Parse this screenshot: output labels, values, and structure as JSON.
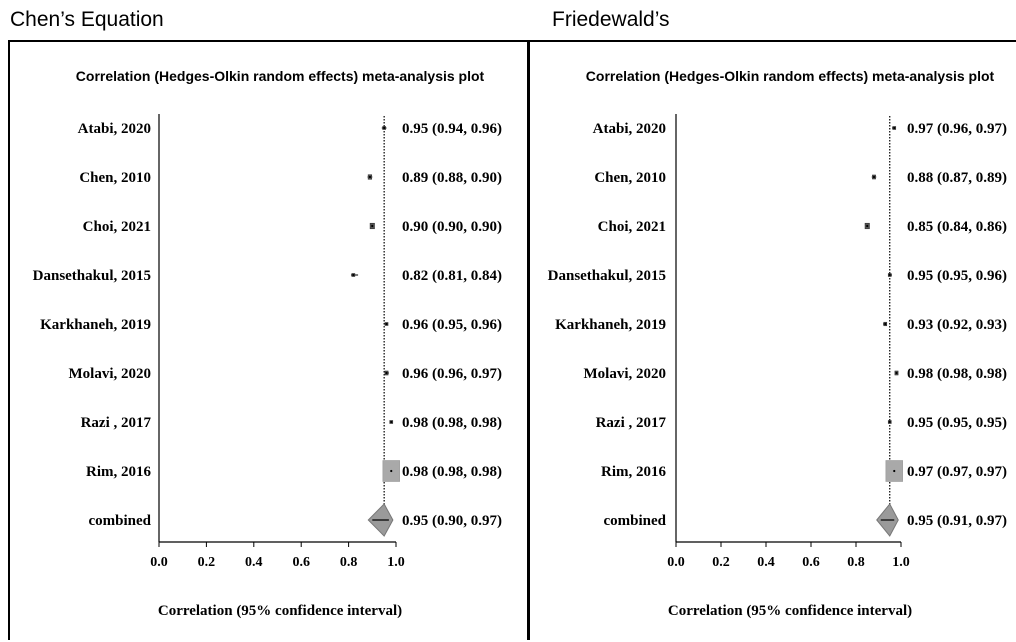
{
  "headings": {
    "left": "Chen’s Equation",
    "right": "Friedewald’s"
  },
  "chart_data": [
    {
      "type": "forest",
      "title": "Correlation (Hedges-Olkin random effects) meta-analysis plot",
      "xlabel": "Correlation (95% confidence interval)",
      "xlim": [
        0.0,
        1.0
      ],
      "xticks": [
        "0.0",
        "0.2",
        "0.4",
        "0.6",
        "0.8",
        "1.0"
      ],
      "reference_line": 0.95,
      "studies": [
        {
          "name": "Atabi, 2020",
          "r": 0.95,
          "lo": 0.94,
          "hi": 0.96,
          "label": "0.95 (0.94, 0.96)",
          "weight": 0.6
        },
        {
          "name": "Chen, 2010",
          "r": 0.89,
          "lo": 0.88,
          "hi": 0.9,
          "label": "0.89 (0.88, 0.90)",
          "weight": 0.9
        },
        {
          "name": "Choi, 2021",
          "r": 0.9,
          "lo": 0.9,
          "hi": 0.9,
          "label": "0.90 (0.90, 0.90)",
          "weight": 1.1
        },
        {
          "name": "Dansethakul, 2015",
          "r": 0.82,
          "lo": 0.81,
          "hi": 0.84,
          "label": "0.82 (0.81, 0.84)",
          "weight": 0.5
        },
        {
          "name": "Karkhaneh, 2019",
          "r": 0.96,
          "lo": 0.95,
          "hi": 0.96,
          "label": "0.96 (0.95, 0.96)",
          "weight": 0.6
        },
        {
          "name": "Molavi, 2020",
          "r": 0.96,
          "lo": 0.96,
          "hi": 0.97,
          "label": "0.96 (0.96, 0.97)",
          "weight": 0.8
        },
        {
          "name": "Razi , 2017",
          "r": 0.98,
          "lo": 0.98,
          "hi": 0.98,
          "label": "0.98 (0.98, 0.98)",
          "weight": 0.6
        },
        {
          "name": "Rim, 2016",
          "r": 0.98,
          "lo": 0.98,
          "hi": 0.98,
          "label": "0.98 (0.98, 0.98)",
          "weight": 4.2
        }
      ],
      "combined": {
        "name": "combined",
        "r": 0.95,
        "lo": 0.9,
        "hi": 0.97,
        "label": "0.95 (0.90, 0.97)"
      }
    },
    {
      "type": "forest",
      "title": "Correlation (Hedges-Olkin random effects) meta-analysis plot",
      "xlabel": "Correlation (95% confidence interval)",
      "xlim": [
        0.0,
        1.0
      ],
      "xticks": [
        "0.0",
        "0.2",
        "0.4",
        "0.6",
        "0.8",
        "1.0"
      ],
      "reference_line": 0.95,
      "studies": [
        {
          "name": "Atabi, 2020",
          "r": 0.97,
          "lo": 0.96,
          "hi": 0.97,
          "label": "0.97 (0.96, 0.97)",
          "weight": 0.5
        },
        {
          "name": "Chen, 2010",
          "r": 0.88,
          "lo": 0.87,
          "hi": 0.89,
          "label": "0.88 (0.87, 0.89)",
          "weight": 0.8
        },
        {
          "name": "Choi, 2021",
          "r": 0.85,
          "lo": 0.84,
          "hi": 0.86,
          "label": "0.85 (0.84, 0.86)",
          "weight": 1.1
        },
        {
          "name": "Dansethakul, 2015",
          "r": 0.95,
          "lo": 0.95,
          "hi": 0.96,
          "label": "0.95 (0.95, 0.96)",
          "weight": 0.5
        },
        {
          "name": "Karkhaneh, 2019",
          "r": 0.93,
          "lo": 0.92,
          "hi": 0.93,
          "label": "0.93 (0.92, 0.93)",
          "weight": 0.7
        },
        {
          "name": "Molavi, 2020",
          "r": 0.98,
          "lo": 0.98,
          "hi": 0.98,
          "label": "0.98 (0.98, 0.98)",
          "weight": 0.8
        },
        {
          "name": "Razi , 2017",
          "r": 0.95,
          "lo": 0.95,
          "hi": 0.95,
          "label": "0.95 (0.95, 0.95)",
          "weight": 0.5
        },
        {
          "name": "Rim, 2016",
          "r": 0.97,
          "lo": 0.97,
          "hi": 0.97,
          "label": "0.97 (0.97, 0.97)",
          "weight": 4.2
        }
      ],
      "combined": {
        "name": "combined",
        "r": 0.95,
        "lo": 0.91,
        "hi": 0.97,
        "label": "0.95 (0.91, 0.97)"
      }
    }
  ]
}
